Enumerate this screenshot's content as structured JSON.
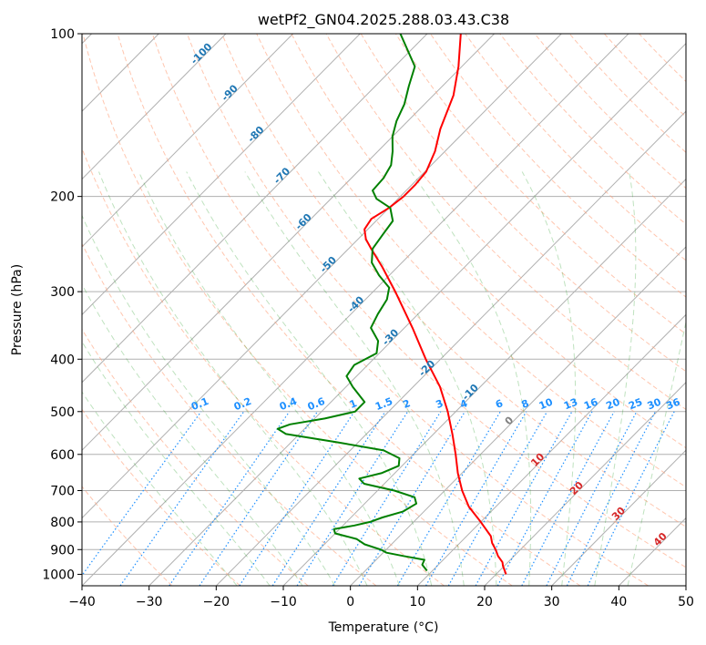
{
  "chart_data": {
    "type": "line",
    "title": "wetPf2_GN04.2025.288.03.43.C38",
    "xlabel": "Temperature (°C)",
    "ylabel": "Pressure (hPa)",
    "xlim": [
      -40,
      50
    ],
    "ylim": [
      1050,
      100
    ],
    "y_scale": "log",
    "skew": true,
    "grid": true,
    "x_ticks": [
      "−40",
      "−30",
      "−20",
      "−10",
      "0",
      "10",
      "20",
      "30",
      "40",
      "50"
    ],
    "x_tick_values": [
      -40,
      -30,
      -20,
      -10,
      0,
      10,
      20,
      30,
      40,
      50
    ],
    "y_ticks": [
      "100",
      "200",
      "300",
      "400",
      "500",
      "600",
      "700",
      "800",
      "900",
      "1000"
    ],
    "y_tick_values": [
      100,
      200,
      300,
      400,
      500,
      600,
      700,
      800,
      900,
      1000
    ],
    "series": [
      {
        "color": "#ff0000",
        "points": [
          [
            1000,
            21.5
          ],
          [
            965,
            19.8
          ],
          [
            950,
            19.2
          ],
          [
            925,
            17.6
          ],
          [
            900,
            16.3
          ],
          [
            875,
            14.8
          ],
          [
            850,
            13.6
          ],
          [
            800,
            10.0
          ],
          [
            750,
            6.0
          ],
          [
            700,
            2.6
          ],
          [
            650,
            -0.6
          ],
          [
            600,
            -3.7
          ],
          [
            550,
            -7.2
          ],
          [
            500,
            -11.2
          ],
          [
            450,
            -16.0
          ],
          [
            400,
            -22.2
          ],
          [
            350,
            -28.8
          ],
          [
            300,
            -36.7
          ],
          [
            270,
            -42.3
          ],
          [
            250,
            -46.6
          ],
          [
            240,
            -48.8
          ],
          [
            230,
            -50.5
          ],
          [
            220,
            -51.0
          ],
          [
            210,
            -50.0
          ],
          [
            200,
            -49.5
          ],
          [
            190,
            -49.5
          ],
          [
            180,
            -49.8
          ],
          [
            165,
            -51.5
          ],
          [
            150,
            -54.0
          ],
          [
            130,
            -57.0
          ],
          [
            115,
            -60.5
          ],
          [
            100,
            -65.0
          ]
        ]
      },
      {
        "color": "#008000",
        "points": [
          [
            985,
            9.2
          ],
          [
            960,
            7.6
          ],
          [
            940,
            7.2
          ],
          [
            925,
            3.5
          ],
          [
            912,
            0.5
          ],
          [
            900,
            -0.8
          ],
          [
            880,
            -4.0
          ],
          [
            860,
            -6.0
          ],
          [
            840,
            -10.0
          ],
          [
            825,
            -10.8
          ],
          [
            812,
            -8.3
          ],
          [
            800,
            -6.5
          ],
          [
            785,
            -5.3
          ],
          [
            765,
            -3.1
          ],
          [
            740,
            -2.3
          ],
          [
            720,
            -3.5
          ],
          [
            700,
            -7.5
          ],
          [
            680,
            -13.0
          ],
          [
            665,
            -14.5
          ],
          [
            650,
            -12.0
          ],
          [
            630,
            -10.5
          ],
          [
            610,
            -11.5
          ],
          [
            590,
            -15.0
          ],
          [
            570,
            -23.0
          ],
          [
            550,
            -32.0
          ],
          [
            538,
            -34.0
          ],
          [
            528,
            -32.8
          ],
          [
            515,
            -28.5
          ],
          [
            500,
            -25.0
          ],
          [
            480,
            -25.0
          ],
          [
            450,
            -29.0
          ],
          [
            430,
            -31.5
          ],
          [
            410,
            -32.0
          ],
          [
            390,
            -30.4
          ],
          [
            370,
            -32.0
          ],
          [
            350,
            -35.0
          ],
          [
            330,
            -36.0
          ],
          [
            310,
            -36.8
          ],
          [
            295,
            -38.2
          ],
          [
            280,
            -41.5
          ],
          [
            265,
            -44.5
          ],
          [
            250,
            -46.4
          ],
          [
            235,
            -47.0
          ],
          [
            222,
            -47.5
          ],
          [
            210,
            -49.8
          ],
          [
            202,
            -53.2
          ],
          [
            195,
            -55.0
          ],
          [
            185,
            -55.2
          ],
          [
            175,
            -56.0
          ],
          [
            165,
            -57.8
          ],
          [
            155,
            -60.0
          ],
          [
            145,
            -61.7
          ],
          [
            135,
            -63.0
          ],
          [
            125,
            -65.0
          ],
          [
            115,
            -67.0
          ],
          [
            100,
            -74.0
          ]
        ]
      }
    ],
    "dry_adiabat_labels": [
      "-100",
      "-90",
      "-80",
      "-70",
      "-60",
      "-50",
      "-40",
      "-30",
      "-20",
      "-10",
      "0"
    ],
    "moist_adiabat_labels": [
      "10",
      "20",
      "30",
      "40"
    ],
    "mixing_ratio_labels": [
      "0.1",
      "0.2",
      "0.4",
      "0.6",
      "1",
      "1.5",
      "2",
      "3",
      "4",
      "6",
      "8",
      "10",
      "13",
      "16",
      "20",
      "25",
      "30",
      "36"
    ]
  }
}
